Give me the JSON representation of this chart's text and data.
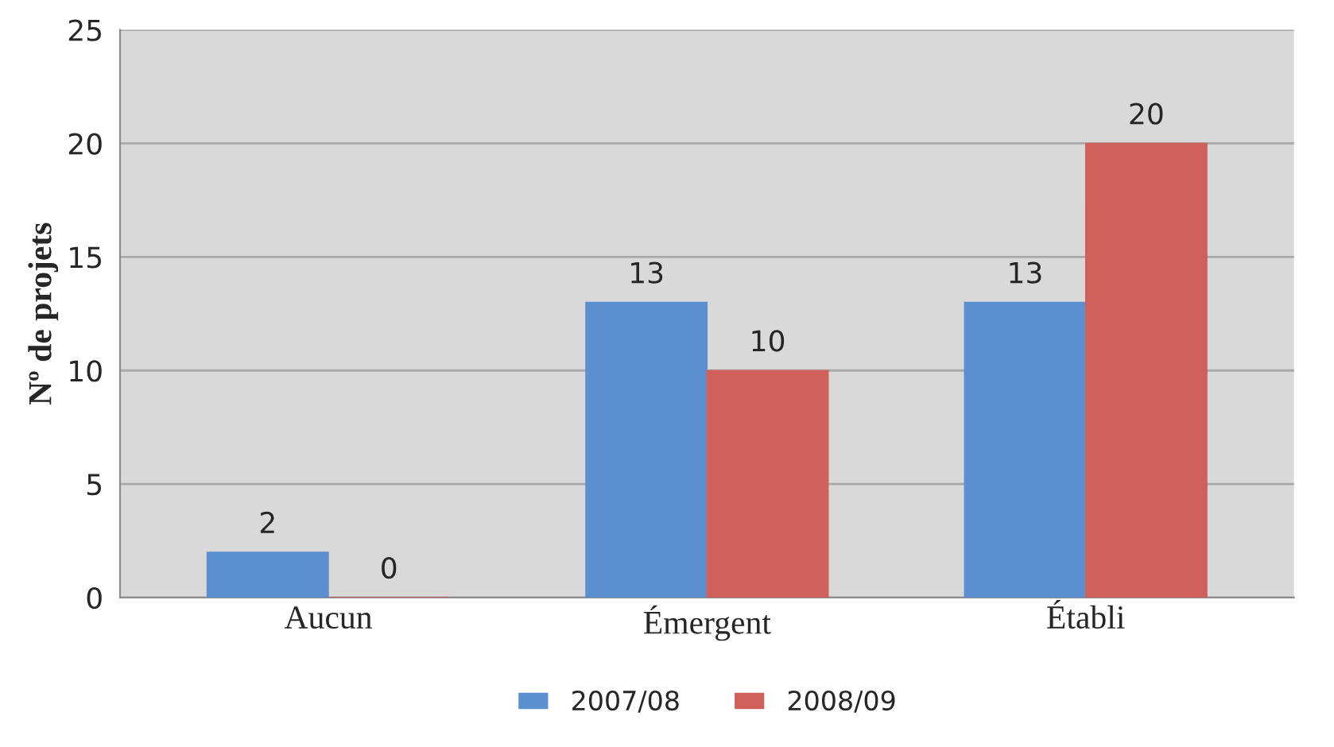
{
  "chart_data": {
    "type": "bar",
    "ylabel": "Nº de projets",
    "categories": [
      "Aucun",
      "Émergent",
      "Établi"
    ],
    "series": [
      {
        "name": "2007/08",
        "color": "#5b8fd0",
        "values": [
          2,
          13,
          13
        ]
      },
      {
        "name": "2008/09",
        "color": "#d0605c",
        "values": [
          0,
          10,
          20
        ]
      }
    ],
    "ylim": [
      0,
      25
    ],
    "yticks": [
      0,
      5,
      10,
      15,
      20,
      25
    ],
    "grid": "y",
    "legend": "bottom",
    "data_labels": true
  }
}
